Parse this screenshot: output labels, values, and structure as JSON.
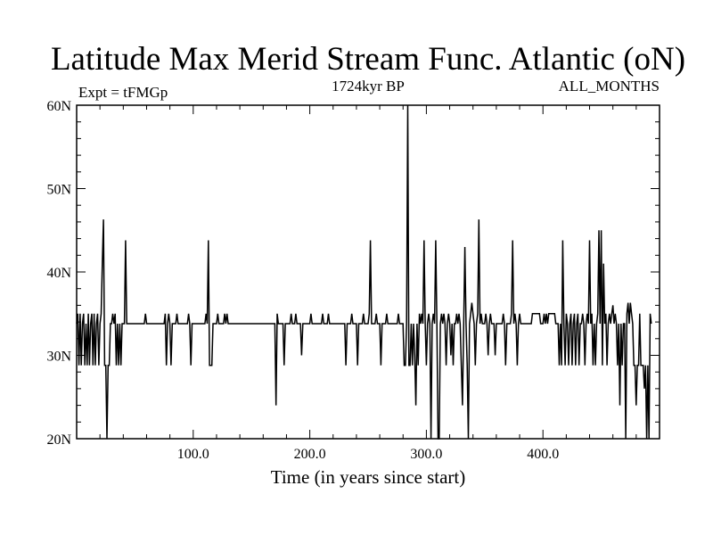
{
  "chart_data": {
    "type": "line",
    "title": "Latitude Max Merid Stream Func. Atlantic (oN)",
    "subtitle_left": "Expt = tFMGp",
    "subtitle_center": "1724kyr BP",
    "subtitle_right": "ALL_MONTHS",
    "xlabel": "Time (in years since start)",
    "ylabel": "",
    "xlim": [
      0,
      500
    ],
    "ylim": [
      20,
      60
    ],
    "x_ticks_major": [
      100,
      200,
      300,
      400
    ],
    "x_tick_labels": [
      "100.0",
      "200.0",
      "300.0",
      "400.0"
    ],
    "y_ticks_major": [
      20,
      30,
      40,
      50,
      60
    ],
    "y_tick_labels": [
      "20N",
      "30N",
      "40N",
      "50N",
      "60N"
    ],
    "grid": false,
    "series": [
      {
        "name": "",
        "color": "#000000",
        "points": [
          [
            0,
            33.8
          ],
          [
            1,
            35.0
          ],
          [
            2,
            28.8
          ],
          [
            3,
            35.0
          ],
          [
            4,
            28.8
          ],
          [
            5,
            33.8
          ],
          [
            6,
            35.0
          ],
          [
            7,
            28.8
          ],
          [
            8,
            33.8
          ],
          [
            9,
            28.8
          ],
          [
            10,
            35.0
          ],
          [
            11,
            28.8
          ],
          [
            12,
            33.8
          ],
          [
            13,
            35.0
          ],
          [
            14,
            28.8
          ],
          [
            15,
            35.0
          ],
          [
            16,
            28.8
          ],
          [
            17,
            33.8
          ],
          [
            18,
            35.0
          ],
          [
            19,
            28.8
          ],
          [
            20,
            33.8
          ],
          [
            21,
            35.0
          ],
          [
            22,
            41.0
          ],
          [
            23,
            46.3
          ],
          [
            24,
            28.8
          ],
          [
            25,
            28.8
          ],
          [
            26,
            20.0
          ],
          [
            27,
            28.8
          ],
          [
            28,
            28.8
          ],
          [
            29,
            33.8
          ],
          [
            30,
            33.8
          ],
          [
            31,
            35.0
          ],
          [
            32,
            33.8
          ],
          [
            33,
            35.0
          ],
          [
            34,
            28.8
          ],
          [
            35,
            33.8
          ],
          [
            36,
            28.8
          ],
          [
            37,
            33.8
          ],
          [
            38,
            28.8
          ],
          [
            39,
            33.8
          ],
          [
            40,
            33.8
          ],
          [
            41,
            33.8
          ],
          [
            42,
            43.8
          ],
          [
            43,
            33.8
          ],
          [
            44,
            33.8
          ],
          [
            50,
            33.8
          ],
          [
            58,
            33.8
          ],
          [
            59,
            35.0
          ],
          [
            60,
            33.8
          ],
          [
            75,
            33.8
          ],
          [
            76,
            35.0
          ],
          [
            77,
            28.8
          ],
          [
            78,
            33.8
          ],
          [
            79,
            35.0
          ],
          [
            80,
            33.8
          ],
          [
            81,
            28.8
          ],
          [
            82,
            33.8
          ],
          [
            85,
            33.8
          ],
          [
            86,
            35.0
          ],
          [
            87,
            33.8
          ],
          [
            95,
            33.8
          ],
          [
            96,
            35.0
          ],
          [
            97,
            33.8
          ],
          [
            98,
            28.8
          ],
          [
            99,
            33.8
          ],
          [
            110,
            33.8
          ],
          [
            111,
            35.0
          ],
          [
            112,
            33.8
          ],
          [
            113,
            43.8
          ],
          [
            114,
            28.8
          ],
          [
            115,
            28.8
          ],
          [
            116,
            28.8
          ],
          [
            117,
            33.8
          ],
          [
            120,
            33.8
          ],
          [
            121,
            35.0
          ],
          [
            122,
            33.8
          ],
          [
            126,
            33.8
          ],
          [
            127,
            35.0
          ],
          [
            128,
            33.8
          ],
          [
            129,
            35.0
          ],
          [
            130,
            33.8
          ],
          [
            170,
            33.8
          ],
          [
            171,
            24.0
          ],
          [
            172,
            35.0
          ],
          [
            173,
            33.8
          ],
          [
            177,
            33.8
          ],
          [
            178,
            28.8
          ],
          [
            179,
            33.8
          ],
          [
            183,
            33.8
          ],
          [
            184,
            35.0
          ],
          [
            185,
            33.8
          ],
          [
            187,
            33.8
          ],
          [
            188,
            35.0
          ],
          [
            189,
            33.8
          ],
          [
            192,
            33.8
          ],
          [
            193,
            30.0
          ],
          [
            194,
            33.8
          ],
          [
            200,
            33.8
          ],
          [
            201,
            35.0
          ],
          [
            202,
            33.8
          ],
          [
            210,
            33.8
          ],
          [
            211,
            35.0
          ],
          [
            212,
            33.8
          ],
          [
            215,
            33.8
          ],
          [
            216,
            35.0
          ],
          [
            217,
            33.8
          ],
          [
            230,
            33.8
          ],
          [
            231,
            28.8
          ],
          [
            232,
            33.8
          ],
          [
            235,
            33.8
          ],
          [
            236,
            35.0
          ],
          [
            237,
            33.8
          ],
          [
            240,
            33.8
          ],
          [
            241,
            28.8
          ],
          [
            242,
            33.8
          ],
          [
            245,
            33.8
          ],
          [
            246,
            35.0
          ],
          [
            247,
            33.8
          ],
          [
            250,
            33.8
          ],
          [
            251,
            35.0
          ],
          [
            252,
            43.8
          ],
          [
            253,
            33.8
          ],
          [
            256,
            33.8
          ],
          [
            257,
            35.0
          ],
          [
            258,
            33.8
          ],
          [
            260,
            33.8
          ],
          [
            261,
            28.8
          ],
          [
            262,
            33.8
          ],
          [
            265,
            33.8
          ],
          [
            266,
            35.0
          ],
          [
            267,
            33.8
          ],
          [
            275,
            33.8
          ],
          [
            276,
            35.0
          ],
          [
            277,
            33.8
          ],
          [
            280,
            33.8
          ],
          [
            281,
            28.8
          ],
          [
            282,
            28.8
          ],
          [
            283,
            33.8
          ],
          [
            284,
            60.0
          ],
          [
            285,
            28.8
          ],
          [
            286,
            28.8
          ],
          [
            287,
            33.8
          ],
          [
            288,
            28.8
          ],
          [
            289,
            33.8
          ],
          [
            290,
            30.0
          ],
          [
            291,
            24.0
          ],
          [
            292,
            33.8
          ],
          [
            293,
            28.8
          ],
          [
            294,
            35.0
          ],
          [
            295,
            33.8
          ],
          [
            296,
            35.0
          ],
          [
            297,
            33.8
          ],
          [
            298,
            43.8
          ],
          [
            299,
            33.8
          ],
          [
            300,
            28.8
          ],
          [
            301,
            33.8
          ],
          [
            302,
            35.0
          ],
          [
            303,
            33.8
          ],
          [
            304,
            20.0
          ],
          [
            305,
            33.8
          ],
          [
            306,
            35.0
          ],
          [
            307,
            33.8
          ],
          [
            308,
            43.8
          ],
          [
            309,
            33.8
          ],
          [
            310,
            20.0
          ],
          [
            311,
            20.0
          ],
          [
            312,
            33.8
          ],
          [
            313,
            35.0
          ],
          [
            314,
            33.8
          ],
          [
            315,
            35.0
          ],
          [
            316,
            33.8
          ],
          [
            317,
            28.8
          ],
          [
            318,
            33.8
          ],
          [
            319,
            35.0
          ],
          [
            320,
            33.8
          ],
          [
            321,
            30.0
          ],
          [
            322,
            33.8
          ],
          [
            323,
            28.8
          ],
          [
            324,
            33.8
          ],
          [
            325,
            33.8
          ],
          [
            326,
            35.0
          ],
          [
            327,
            33.8
          ],
          [
            328,
            35.0
          ],
          [
            329,
            33.8
          ],
          [
            330,
            28.8
          ],
          [
            331,
            24.0
          ],
          [
            332,
            33.8
          ],
          [
            333,
            43.0
          ],
          [
            334,
            33.8
          ],
          [
            335,
            28.8
          ],
          [
            336,
            20.0
          ],
          [
            337,
            33.8
          ],
          [
            338,
            35.0
          ],
          [
            339,
            36.3
          ],
          [
            340,
            35.0
          ],
          [
            341,
            33.8
          ],
          [
            342,
            28.8
          ],
          [
            343,
            33.8
          ],
          [
            344,
            35.0
          ],
          [
            345,
            46.3
          ],
          [
            346,
            33.8
          ],
          [
            347,
            35.0
          ],
          [
            348,
            33.8
          ],
          [
            350,
            33.8
          ],
          [
            351,
            35.0
          ],
          [
            352,
            33.8
          ],
          [
            353,
            30.0
          ],
          [
            354,
            33.8
          ],
          [
            355,
            35.0
          ],
          [
            356,
            33.8
          ],
          [
            358,
            33.8
          ],
          [
            359,
            30.0
          ],
          [
            360,
            33.8
          ],
          [
            365,
            33.8
          ],
          [
            366,
            35.0
          ],
          [
            367,
            33.8
          ],
          [
            368,
            28.8
          ],
          [
            369,
            33.8
          ],
          [
            372,
            33.8
          ],
          [
            373,
            35.0
          ],
          [
            374,
            43.8
          ],
          [
            375,
            33.8
          ],
          [
            376,
            35.0
          ],
          [
            377,
            33.8
          ],
          [
            378,
            28.8
          ],
          [
            379,
            33.8
          ],
          [
            380,
            35.0
          ],
          [
            381,
            33.8
          ],
          [
            385,
            33.8
          ],
          [
            390,
            33.8
          ],
          [
            391,
            35.0
          ],
          [
            397,
            35.0
          ],
          [
            398,
            33.8
          ],
          [
            400,
            33.8
          ],
          [
            401,
            35.0
          ],
          [
            402,
            33.8
          ],
          [
            403,
            35.0
          ],
          [
            404,
            33.8
          ],
          [
            405,
            35.0
          ],
          [
            410,
            35.0
          ],
          [
            411,
            33.8
          ],
          [
            413,
            33.8
          ],
          [
            414,
            28.8
          ],
          [
            415,
            33.8
          ],
          [
            416,
            28.8
          ],
          [
            417,
            43.8
          ],
          [
            418,
            33.8
          ],
          [
            419,
            28.8
          ],
          [
            420,
            35.0
          ],
          [
            421,
            33.8
          ],
          [
            422,
            28.8
          ],
          [
            423,
            33.8
          ],
          [
            424,
            35.0
          ],
          [
            425,
            28.8
          ],
          [
            426,
            33.8
          ],
          [
            427,
            35.0
          ],
          [
            428,
            28.8
          ],
          [
            429,
            33.8
          ],
          [
            430,
            35.0
          ],
          [
            431,
            28.8
          ],
          [
            432,
            33.8
          ],
          [
            433,
            33.8
          ],
          [
            434,
            35.0
          ],
          [
            435,
            33.8
          ],
          [
            436,
            28.8
          ],
          [
            437,
            33.8
          ],
          [
            438,
            35.0
          ],
          [
            439,
            33.8
          ],
          [
            440,
            43.8
          ],
          [
            441,
            33.8
          ],
          [
            442,
            35.0
          ],
          [
            443,
            28.8
          ],
          [
            444,
            33.8
          ],
          [
            445,
            28.8
          ],
          [
            446,
            33.8
          ],
          [
            447,
            35.0
          ],
          [
            448,
            45.0
          ],
          [
            449,
            33.8
          ],
          [
            450,
            45.0
          ],
          [
            451,
            28.8
          ],
          [
            452,
            41.0
          ],
          [
            453,
            33.8
          ],
          [
            454,
            35.0
          ],
          [
            455,
            28.8
          ],
          [
            456,
            33.8
          ],
          [
            457,
            35.0
          ],
          [
            458,
            33.8
          ],
          [
            459,
            35.0
          ],
          [
            460,
            36.0
          ],
          [
            461,
            33.8
          ],
          [
            462,
            35.0
          ],
          [
            463,
            33.8
          ],
          [
            464,
            28.8
          ],
          [
            465,
            33.8
          ],
          [
            466,
            24.0
          ],
          [
            467,
            33.8
          ],
          [
            468,
            28.8
          ],
          [
            469,
            33.8
          ],
          [
            470,
            33.8
          ],
          [
            471,
            20.0
          ],
          [
            472,
            35.0
          ],
          [
            473,
            36.3
          ],
          [
            474,
            33.8
          ],
          [
            475,
            36.3
          ],
          [
            476,
            35.0
          ],
          [
            477,
            33.8
          ],
          [
            478,
            28.8
          ],
          [
            479,
            28.8
          ],
          [
            480,
            24.0
          ],
          [
            481,
            28.8
          ],
          [
            482,
            28.8
          ],
          [
            483,
            35.0
          ],
          [
            484,
            28.8
          ],
          [
            485,
            28.8
          ],
          [
            486,
            28.8
          ],
          [
            487,
            26.0
          ],
          [
            488,
            28.8
          ],
          [
            489,
            20.0
          ],
          [
            490,
            28.8
          ],
          [
            491,
            20.0
          ],
          [
            492,
            35.0
          ],
          [
            493,
            33.8
          ]
        ]
      }
    ]
  }
}
